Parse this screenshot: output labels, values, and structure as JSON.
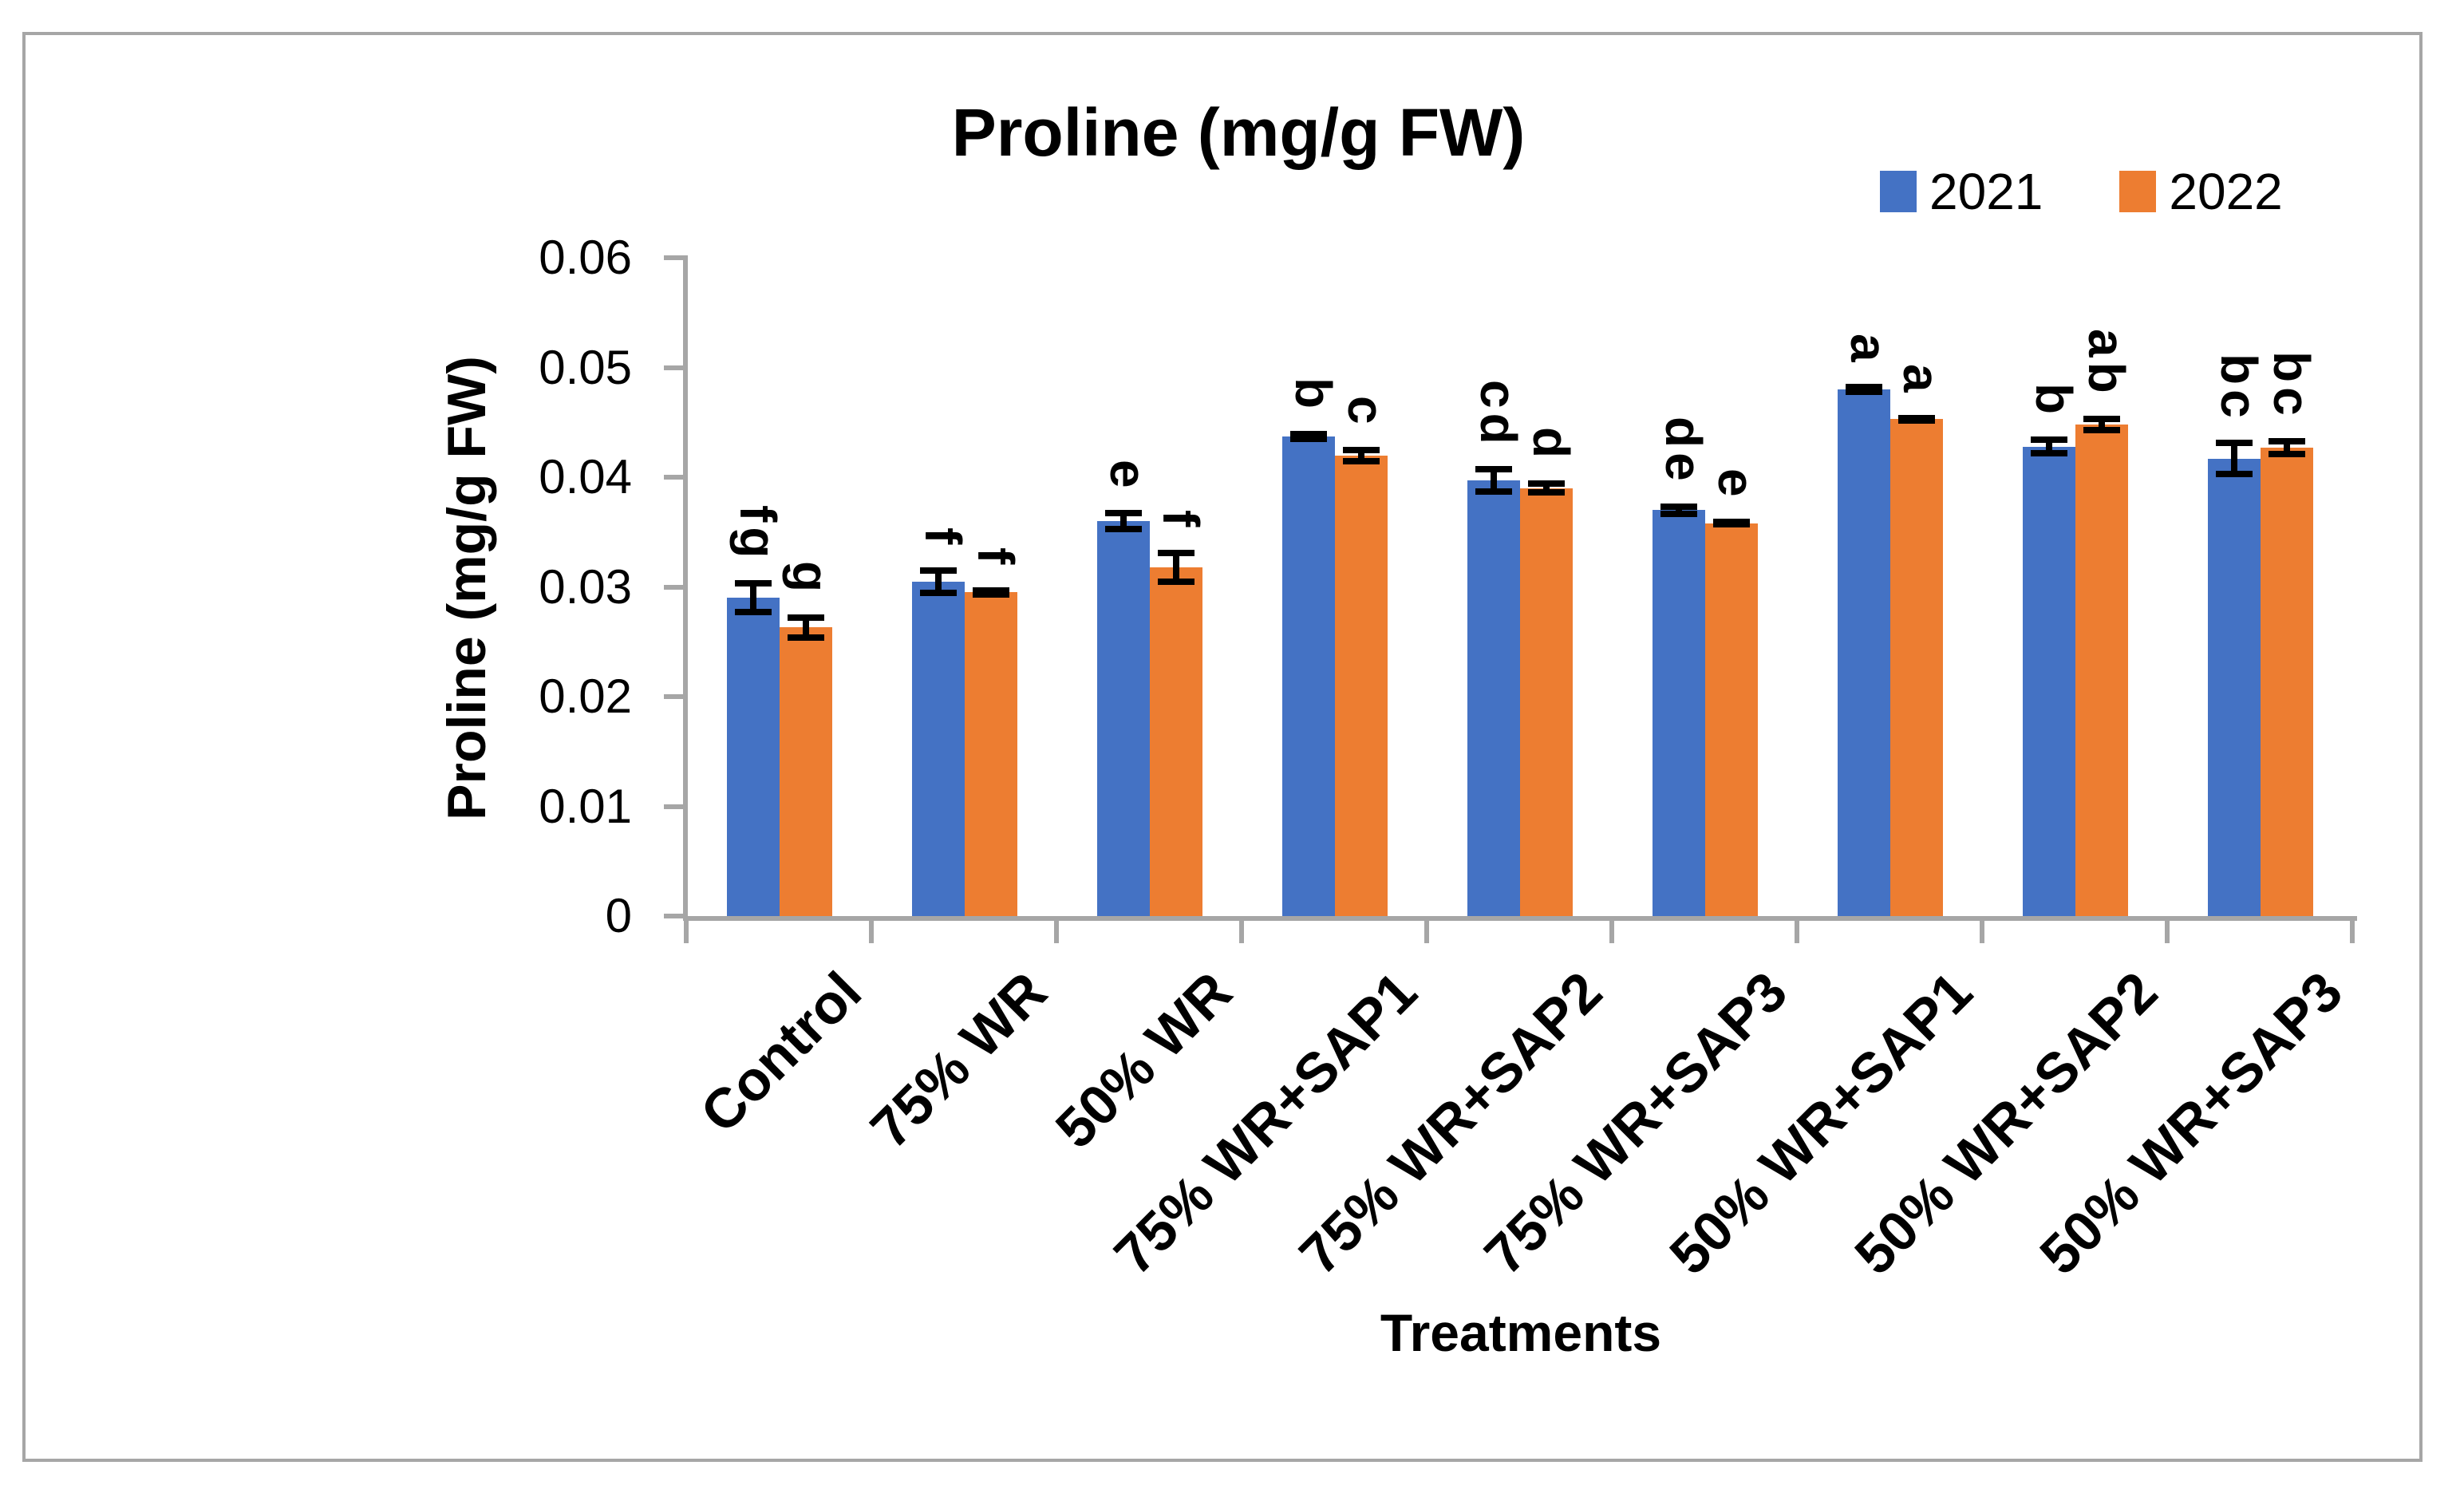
{
  "figure": {
    "title": "Proline (mg/g FW)",
    "background": "#FFFFFF",
    "border_color": "#A6A6A6",
    "axis_color": "#A6A6A6",
    "error_bar_color": "#000000"
  },
  "legend": {
    "position": "top-right",
    "items": [
      {
        "label": "2021",
        "color": "#4472C4"
      },
      {
        "label": "2022",
        "color": "#ED7D31"
      }
    ]
  },
  "chart_data": {
    "type": "bar",
    "title": "Proline (mg/g FW)",
    "xlabel": "Treatments",
    "ylabel": "Proline (mg/g FW)",
    "ylim": [
      0,
      0.06
    ],
    "ytick_labels": [
      "0",
      "0.01",
      "0.02",
      "0.03",
      "0.04",
      "0.05",
      "0.06"
    ],
    "grid": false,
    "legend_position": "top-right",
    "categories": [
      "Control",
      "75% WR",
      "50% WR",
      "75% WR+SAP1",
      "75% WR+SAP2",
      "75% WR+SAP3",
      "50% WR+SAP1",
      "50% WR+SAP2",
      "50% WR+SAP3"
    ],
    "series": [
      {
        "name": "2021",
        "color": "#4472C4",
        "values": [
          0.029,
          0.0305,
          0.036,
          0.0437,
          0.0397,
          0.037,
          0.048,
          0.0428,
          0.0417
        ],
        "errors": [
          0.0016,
          0.0013,
          0.001,
          0.0005,
          0.0013,
          0.0006,
          0.0005,
          0.0009,
          0.0017
        ],
        "sig_letters": [
          "fg",
          "f",
          "e",
          "b",
          "cd",
          "de",
          "a",
          "b",
          "bc"
        ]
      },
      {
        "name": "2022",
        "color": "#ED7D31",
        "values": [
          0.0263,
          0.0295,
          0.0318,
          0.042,
          0.039,
          0.0358,
          0.0453,
          0.0448,
          0.0427
        ],
        "errors": [
          0.0012,
          0.0005,
          0.0016,
          0.0008,
          0.0007,
          0.0004,
          0.0004,
          0.0008,
          0.0009
        ],
        "sig_letters": [
          "g",
          "f",
          "f",
          "c",
          "d",
          "e",
          "a",
          "ab",
          "bc"
        ]
      }
    ]
  }
}
